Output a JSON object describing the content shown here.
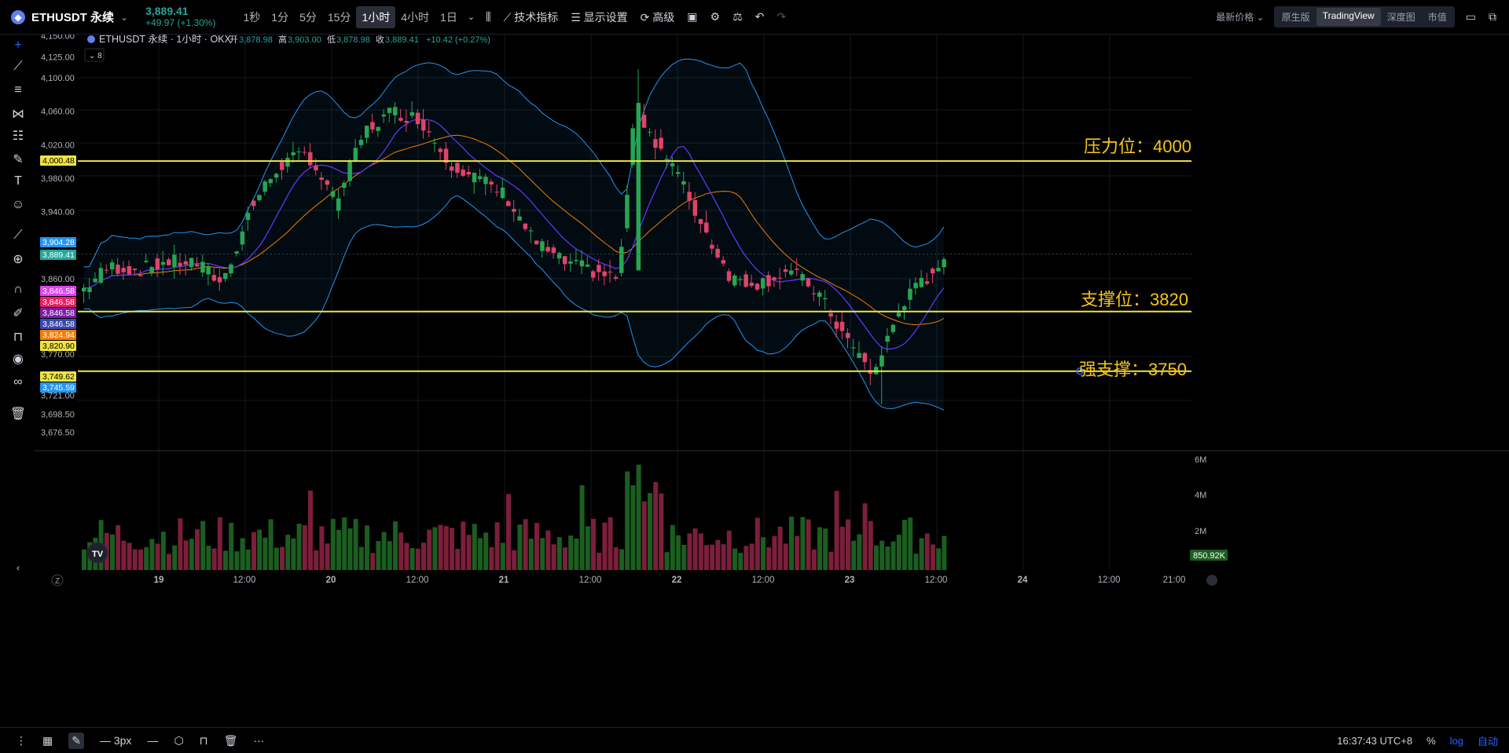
{
  "header": {
    "symbol": "ETHUSDT 永续",
    "price": "3,889.41",
    "change": "+49.97 (+1.30%)",
    "timeframes": [
      "1秒",
      "1分",
      "5分",
      "15分",
      "1小时",
      "4小时",
      "1日"
    ],
    "active_timeframe": "1小时",
    "tools": {
      "indicators": "技术指标",
      "display": "显示设置",
      "advanced": "高级"
    },
    "latest_price_label": "最新价格",
    "views": [
      "原生版",
      "TradingView",
      "深度图",
      "市值"
    ],
    "active_view": "TradingView"
  },
  "legend": {
    "title": "ETHUSDT 永续 · 1小时 · OKX",
    "open_label": "开",
    "open": "3,878.98",
    "high_label": "高",
    "high": "3,903.00",
    "low_label": "低",
    "low": "3,878.98",
    "close_label": "收",
    "close": "3,889.41",
    "delta": "+10.42 (+0.27%)",
    "collapse_count": "8"
  },
  "annotations": {
    "resistance": "压力位：4000",
    "support": "支撑位：3820",
    "strong_support": "强支撑：3750"
  },
  "price_axis": [
    "4,150.00",
    "4,125.00",
    "4,100.00",
    "4,060.00",
    "4,020.00",
    "3,980.00",
    "3,940.00",
    "3,860.00",
    "3,770.00",
    "3,721.00",
    "3,698.50",
    "3,676.50"
  ],
  "price_tags": [
    {
      "text": "4,000.48",
      "color": "#f0e442",
      "fg": "#000"
    },
    {
      "text": "3,904.28",
      "color": "#2196f3",
      "fg": "#fff"
    },
    {
      "text": "3,889.41",
      "color": "#26a69a",
      "fg": "#fff"
    },
    {
      "text": "3,846.58",
      "color": "#e040fb",
      "fg": "#fff"
    },
    {
      "text": "3,846.58",
      "color": "#e91e63",
      "fg": "#fff"
    },
    {
      "text": "3,846.58",
      "color": "#7b1fa2",
      "fg": "#fff"
    },
    {
      "text": "3,846.58",
      "color": "#3949ab",
      "fg": "#fff"
    },
    {
      "text": "3,824.94",
      "color": "#f57c00",
      "fg": "#fff"
    },
    {
      "text": "3,820.90",
      "color": "#f0e442",
      "fg": "#000"
    },
    {
      "text": "3,749.62",
      "color": "#f0e442",
      "fg": "#000"
    },
    {
      "text": "3,745.59",
      "color": "#2196f3",
      "fg": "#fff"
    }
  ],
  "volume_axis": [
    "6M",
    "4M",
    "2M"
  ],
  "volume_tag": "850.92K",
  "time_axis": [
    "19",
    "12:00",
    "20",
    "12:00",
    "21",
    "12:00",
    "22",
    "12:00",
    "23",
    "12:00",
    "24",
    "12:00",
    "21:00"
  ],
  "footer": {
    "stroke_width": "3px",
    "clock": "16:37:43 UTC+8",
    "percent": "%",
    "log": "log",
    "auto": "自动",
    "z_label": "Z"
  },
  "chart_data": {
    "type": "candlestick",
    "ylim": [
      3660,
      4160
    ],
    "horizontal_lines": [
      4000.48,
      3820.9,
      3749.62
    ],
    "candles_start_index": 0,
    "ohlc_anchor_points": [
      [
        0,
        3845
      ],
      [
        10,
        3875
      ],
      [
        20,
        3870
      ],
      [
        30,
        3880
      ],
      [
        40,
        3880
      ],
      [
        50,
        3855
      ],
      [
        60,
        3945
      ],
      [
        70,
        3995
      ],
      [
        80,
        4010
      ],
      [
        90,
        3950
      ],
      [
        100,
        4035
      ],
      [
        110,
        4060
      ],
      [
        120,
        4050
      ],
      [
        130,
        4000
      ],
      [
        140,
        3980
      ],
      [
        150,
        3960
      ],
      [
        160,
        3905
      ],
      [
        170,
        3880
      ],
      [
        180,
        3870
      ],
      [
        190,
        3860
      ],
      [
        196,
        4065
      ],
      [
        200,
        4040
      ],
      [
        210,
        3990
      ],
      [
        220,
        3920
      ],
      [
        230,
        3860
      ],
      [
        240,
        3855
      ],
      [
        250,
        3870
      ],
      [
        260,
        3845
      ],
      [
        270,
        3790
      ],
      [
        280,
        3745
      ],
      [
        290,
        3830
      ],
      [
        300,
        3865
      ],
      [
        305,
        3886
      ]
    ],
    "volume_max": 6000000
  }
}
